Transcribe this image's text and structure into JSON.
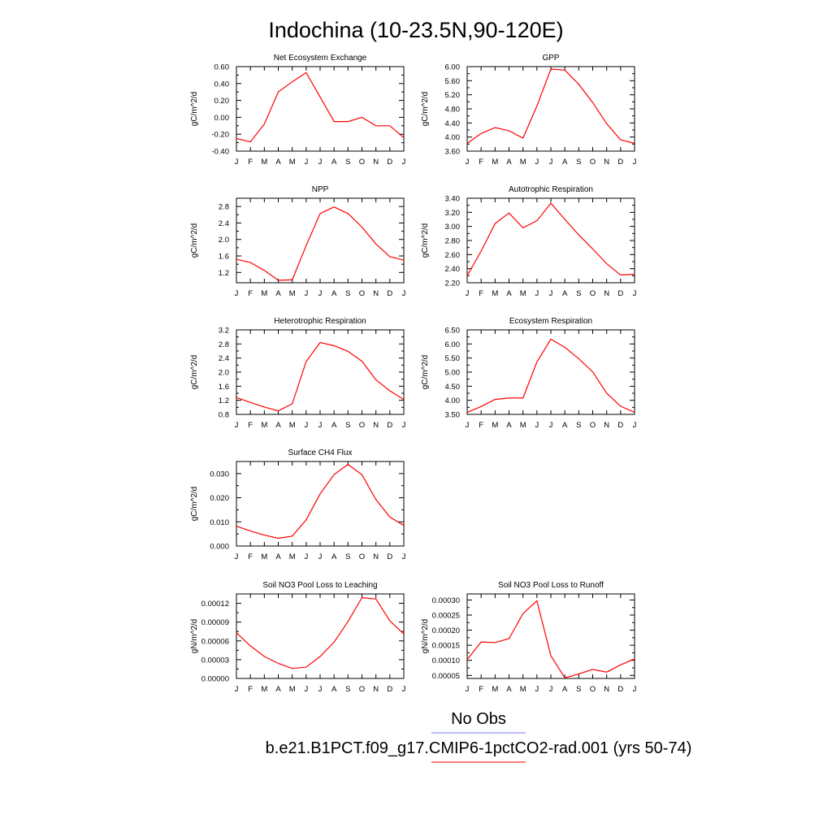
{
  "page_title": "Indochina (10-23.5N,90-120E)",
  "legend": {
    "obs_label": "No Obs",
    "obs_color": "#7777ff",
    "model_label": "b.e21.B1PCT.f09_g17.CMIP6-1pctCO2-rad.001 (yrs 50-74)",
    "model_color": "#ff0000"
  },
  "chart_data": [
    {
      "type": "line",
      "title": "Net Ecosystem Exchange",
      "ylabel": "gC/m^2/d",
      "x": [
        "J",
        "F",
        "M",
        "A",
        "M",
        "J",
        "J",
        "A",
        "S",
        "O",
        "N",
        "D",
        "J"
      ],
      "ylim": [
        -0.4,
        0.6
      ],
      "yticks": [
        "-0.40",
        "-0.20",
        "0.00",
        "0.20",
        "0.40",
        "0.60"
      ],
      "values": [
        -0.25,
        -0.29,
        -0.08,
        0.3,
        0.42,
        0.53,
        0.24,
        -0.05,
        -0.05,
        0.0,
        -0.1,
        -0.1,
        -0.24
      ],
      "series_color": "#ff0000"
    },
    {
      "type": "line",
      "title": "GPP",
      "ylabel": "gC/m^2/d",
      "x": [
        "J",
        "F",
        "M",
        "A",
        "M",
        "J",
        "J",
        "A",
        "S",
        "O",
        "N",
        "D",
        "J"
      ],
      "ylim": [
        3.6,
        6.0
      ],
      "yticks": [
        "3.60",
        "4.00",
        "4.40",
        "4.80",
        "5.20",
        "5.60",
        "6.00"
      ],
      "values": [
        3.82,
        4.1,
        4.27,
        4.18,
        3.97,
        4.88,
        5.93,
        5.9,
        5.5,
        4.98,
        4.38,
        3.92,
        3.82
      ],
      "series_color": "#ff0000"
    },
    {
      "type": "line",
      "title": "NPP",
      "ylabel": "gC/m^2/d",
      "x": [
        "J",
        "F",
        "M",
        "A",
        "M",
        "J",
        "J",
        "A",
        "S",
        "O",
        "N",
        "D",
        "J"
      ],
      "ylim": [
        0.95,
        3.0
      ],
      "yticks": [
        "1.2",
        "1.6",
        "2.0",
        "2.4",
        "2.8"
      ],
      "values": [
        1.52,
        1.44,
        1.25,
        1.01,
        1.02,
        1.85,
        2.63,
        2.79,
        2.63,
        2.3,
        1.89,
        1.58,
        1.5
      ],
      "series_color": "#ff0000"
    },
    {
      "type": "line",
      "title": "Autotrophic Respiration",
      "ylabel": "gC/m^2/d",
      "x": [
        "J",
        "F",
        "M",
        "A",
        "M",
        "J",
        "J",
        "A",
        "S",
        "O",
        "N",
        "D",
        "J"
      ],
      "ylim": [
        2.2,
        3.4
      ],
      "yticks": [
        "2.20",
        "2.40",
        "2.60",
        "2.80",
        "3.00",
        "3.20",
        "3.40"
      ],
      "values": [
        2.3,
        2.65,
        3.04,
        3.19,
        2.98,
        3.08,
        3.33,
        3.1,
        2.88,
        2.68,
        2.47,
        2.31,
        2.32
      ],
      "series_color": "#ff0000"
    },
    {
      "type": "line",
      "title": "Heterotrophic Respiration",
      "ylabel": "gC/m^2/d",
      "x": [
        "J",
        "F",
        "M",
        "A",
        "M",
        "J",
        "J",
        "A",
        "S",
        "O",
        "N",
        "D",
        "J"
      ],
      "ylim": [
        0.8,
        3.2
      ],
      "yticks": [
        "0.8",
        "1.2",
        "1.6",
        "2.0",
        "2.4",
        "2.8",
        "3.2"
      ],
      "values": [
        1.28,
        1.14,
        1.01,
        0.9,
        1.1,
        2.3,
        2.84,
        2.75,
        2.59,
        2.31,
        1.78,
        1.47,
        1.22
      ],
      "series_color": "#ff0000"
    },
    {
      "type": "line",
      "title": "Ecosystem Respiration",
      "ylabel": "gC/m^2/d",
      "x": [
        "J",
        "F",
        "M",
        "A",
        "M",
        "J",
        "J",
        "A",
        "S",
        "O",
        "N",
        "D",
        "J"
      ],
      "ylim": [
        3.5,
        6.5
      ],
      "yticks": [
        "3.50",
        "4.00",
        "4.50",
        "5.00",
        "5.50",
        "6.00",
        "6.50"
      ],
      "values": [
        3.57,
        3.78,
        4.03,
        4.08,
        4.08,
        5.36,
        6.17,
        5.88,
        5.48,
        5.01,
        4.25,
        3.79,
        3.57
      ],
      "series_color": "#ff0000"
    },
    {
      "type": "line",
      "title": "Surface CH4 Flux",
      "ylabel": "gC/m^2/d",
      "x": [
        "J",
        "F",
        "M",
        "A",
        "M",
        "J",
        "J",
        "A",
        "S",
        "O",
        "N",
        "D",
        "J"
      ],
      "ylim": [
        0.0,
        0.035
      ],
      "yticks": [
        "0.000",
        "0.010",
        "0.020",
        "0.030"
      ],
      "values": [
        0.0082,
        0.0062,
        0.0045,
        0.0032,
        0.0041,
        0.0108,
        0.0216,
        0.0296,
        0.0338,
        0.0295,
        0.0192,
        0.012,
        0.0085
      ],
      "series_color": "#ff0000"
    },
    {
      "type": "line",
      "title": "Soil NO3 Pool Loss to Leaching",
      "ylabel": "gN/m^2/d",
      "x": [
        "J",
        "F",
        "M",
        "A",
        "M",
        "J",
        "J",
        "A",
        "S",
        "O",
        "N",
        "D",
        "J"
      ],
      "ylim": [
        0.0,
        0.000135
      ],
      "yticks": [
        "0.00000",
        "0.00003",
        "0.00006",
        "0.00009",
        "0.00012"
      ],
      "values": [
        7.3e-05,
        5.2e-05,
        3.5e-05,
        2.4e-05,
        1.6e-05,
        1.8e-05,
        3.5e-05,
        5.8e-05,
        9.1e-05,
        0.000129,
        0.000127,
        9.2e-05,
        7.1e-05
      ],
      "series_color": "#ff0000"
    },
    {
      "type": "line",
      "title": "Soil NO3 Pool Loss to Runoff",
      "ylabel": "gN/m^2/d",
      "x": [
        "J",
        "F",
        "M",
        "A",
        "M",
        "J",
        "J",
        "A",
        "S",
        "O",
        "N",
        "D",
        "J"
      ],
      "ylim": [
        4e-05,
        0.00032
      ],
      "yticks": [
        "0.00005",
        "0.00010",
        "0.00015",
        "0.00020",
        "0.00025",
        "0.00030"
      ],
      "values": [
        0.000103,
        0.000161,
        0.000159,
        0.000172,
        0.000255,
        0.000297,
        0.000115,
        4.2e-05,
        5.5e-05,
        7e-05,
        6.1e-05,
        8.5e-05,
        0.000105
      ],
      "series_color": "#ff0000"
    }
  ]
}
